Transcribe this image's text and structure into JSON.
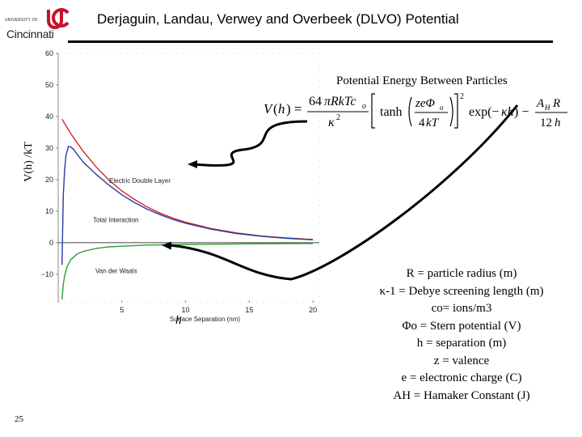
{
  "header": {
    "logo_small": "UNIVERSITY OF",
    "logo_big": "Cincinnati",
    "title": "Derjaguin, Landau, Verwey and Overbeek (DLVO) Potential"
  },
  "annotations": {
    "potential_title": "Potential Energy Between Particles",
    "h_label": "h",
    "y_axis_label": "V(h) /kT",
    "formula_text": "V(h) = 64πRkTc_o/κ^2 [tanh(zeΦ_o/4kT)]^2 exp(−κh) − A_H R/12h"
  },
  "definitions": [
    "R = particle radius (m)",
    "κ-1 = Debye screening length (m)",
    "co= ions/m3",
    "Φo = Stern potential (V)",
    "h = separation (m)",
    "z = valence",
    "e = electronic charge (C)",
    "AH = Hamaker Constant (J)"
  ],
  "page_number": "25",
  "chart_data": {
    "type": "line",
    "xlabel": "Surface Separation (nm)",
    "ylabel": "V(h) /kT",
    "xlim": [
      0,
      20.5
    ],
    "ylim": [
      -19,
      60
    ],
    "xticks": [
      5,
      10,
      15,
      20
    ],
    "yticks": [
      -10,
      0,
      10,
      20,
      30,
      40,
      50,
      60
    ],
    "zero_line": 0,
    "series": [
      {
        "name": "Electric Double Layer",
        "color": "#d62728",
        "x": [
          0.3,
          0.5,
          0.8,
          1,
          1.5,
          2,
          3,
          4,
          5,
          6,
          7,
          8,
          9,
          10,
          12,
          14,
          16,
          18,
          20
        ],
        "y": [
          39.2,
          37.8,
          35.8,
          34.5,
          31.6,
          28.8,
          23.9,
          19.8,
          16.4,
          13.7,
          11.3,
          9.4,
          7.8,
          6.5,
          4.5,
          3.1,
          2.1,
          1.5,
          1.0
        ]
      },
      {
        "name": "Total Interaction",
        "color": "#2a3a9e",
        "x": [
          0.3,
          0.4,
          0.5,
          0.6,
          0.8,
          1,
          1.2,
          1.5,
          2,
          3,
          4,
          5,
          6,
          7,
          8,
          9,
          10,
          12,
          14,
          16,
          18,
          20
        ],
        "y": [
          -7.0,
          15.0,
          23.0,
          27.5,
          30.5,
          30.3,
          29.6,
          28.0,
          25.4,
          21.6,
          18.2,
          15.2,
          12.7,
          10.6,
          8.9,
          7.4,
          6.2,
          4.3,
          2.9,
          2.0,
          1.4,
          0.9
        ]
      },
      {
        "name": "Van der Waals",
        "color": "#2ca02c",
        "x": [
          0.3,
          0.4,
          0.5,
          0.7,
          1,
          1.5,
          2,
          3,
          4,
          5,
          7,
          10,
          15,
          20
        ],
        "y": [
          -18.0,
          -13.2,
          -10.6,
          -7.6,
          -5.3,
          -3.5,
          -2.7,
          -1.8,
          -1.3,
          -1.1,
          -0.75,
          -0.53,
          -0.35,
          -0.26
        ]
      }
    ],
    "series_labels": [
      "Electric Double Layer",
      "Total Interaction",
      "Van der Waals"
    ]
  }
}
